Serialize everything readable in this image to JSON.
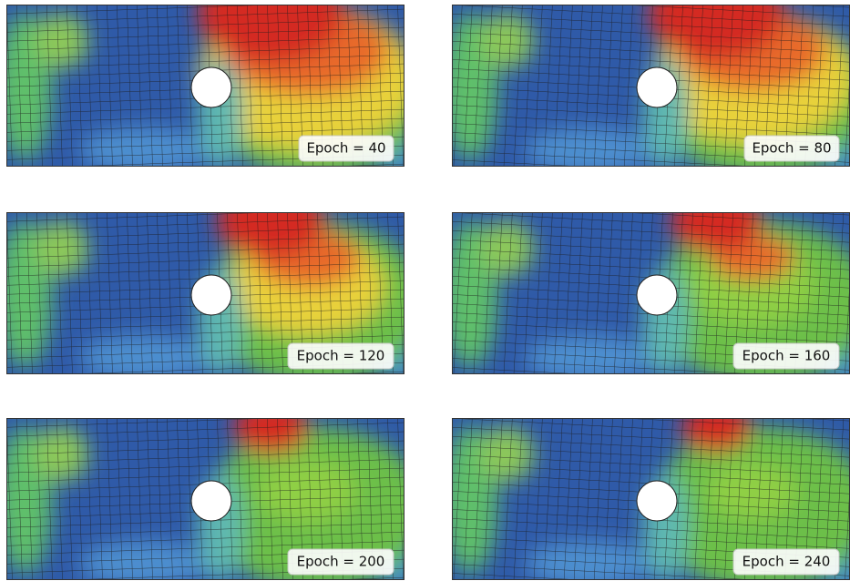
{
  "panels": [
    {
      "label": "Epoch = 40"
    },
    {
      "label": "Epoch = 80"
    },
    {
      "label": "Epoch = 120"
    },
    {
      "label": "Epoch = 160"
    },
    {
      "label": "Epoch = 200"
    },
    {
      "label": "Epoch = 240"
    }
  ]
}
